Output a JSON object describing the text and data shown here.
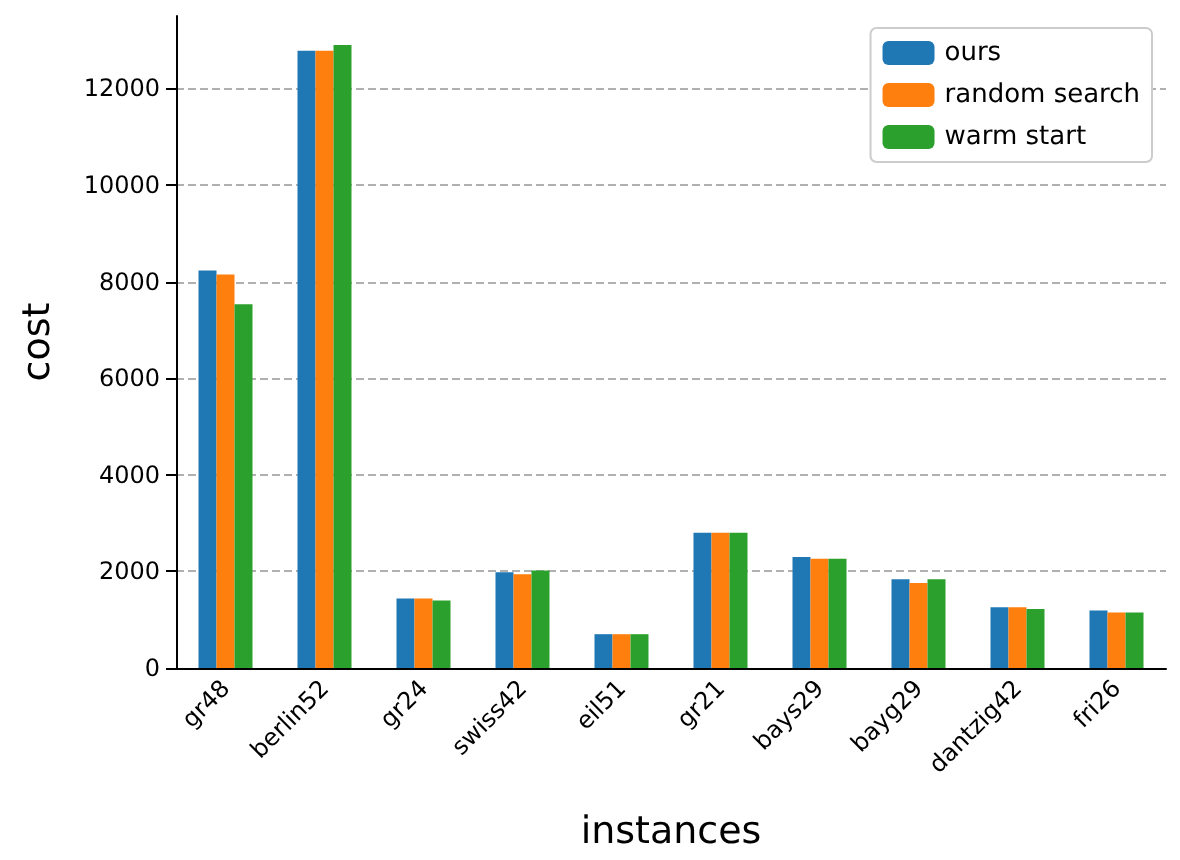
{
  "chart_data": {
    "type": "bar",
    "xlabel": "instances",
    "ylabel": "cost",
    "categories": [
      "gr48",
      "berlin52",
      "gr24",
      "swiss42",
      "eil51",
      "gr21",
      "bays29",
      "bayg29",
      "dantzig42",
      "fri26"
    ],
    "series": [
      {
        "name": "ours",
        "color": "#1f77b4",
        "values": [
          8230,
          12780,
          1440,
          1980,
          700,
          2800,
          2300,
          1840,
          1260,
          1190
        ]
      },
      {
        "name": "random search",
        "color": "#ff7f0e",
        "values": [
          8150,
          12780,
          1440,
          1940,
          700,
          2800,
          2260,
          1760,
          1260,
          1150
        ]
      },
      {
        "name": "warm start",
        "color": "#2ca02c",
        "values": [
          7530,
          12900,
          1400,
          2020,
          700,
          2800,
          2260,
          1840,
          1220,
          1150
        ]
      }
    ],
    "ylim": [
      0,
      13500
    ],
    "yticks": [
      0,
      2000,
      4000,
      6000,
      8000,
      10000,
      12000
    ],
    "grid": "y",
    "legend": "top right"
  }
}
